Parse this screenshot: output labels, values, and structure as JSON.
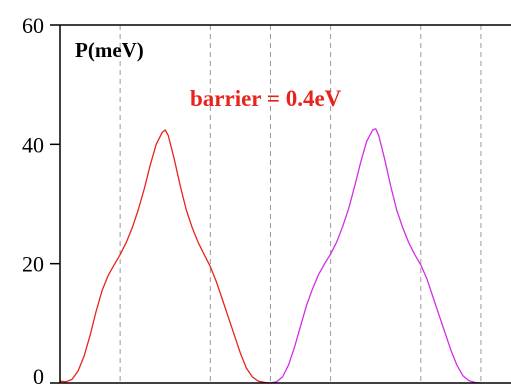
{
  "chart_data": {
    "type": "line",
    "title": "",
    "xlabel": "",
    "ylabel": "P(meV)",
    "annotation": "barrier = 0.4eV",
    "ylim": [
      0,
      60
    ],
    "yticks": [
      0,
      20,
      40,
      60
    ],
    "xlim": [
      0,
      7.5
    ],
    "x_gridlines": [
      1,
      2.5,
      3.5,
      4.5,
      6,
      7
    ],
    "grid": "x-only dashed",
    "series": [
      {
        "color": "#e8231c",
        "x": [
          0.0,
          0.1,
          0.2,
          0.3,
          0.4,
          0.5,
          0.6,
          0.7,
          0.8,
          0.9,
          1.0,
          1.1,
          1.2,
          1.3,
          1.4,
          1.5,
          1.6,
          1.7,
          1.75,
          1.8,
          1.9,
          2.0,
          2.1,
          2.2,
          2.3,
          2.4,
          2.5,
          2.6,
          2.7,
          2.8,
          2.9,
          3.0,
          3.1,
          3.2,
          3.3,
          3.4,
          3.5
        ],
        "values": [
          0.3,
          0.2,
          0.6,
          2.0,
          4.5,
          8.0,
          12.0,
          15.5,
          18.0,
          19.8,
          21.5,
          23.5,
          26.0,
          29.0,
          32.5,
          36.5,
          40.0,
          42.0,
          42.4,
          41.5,
          37.5,
          33.0,
          29.0,
          26.0,
          23.5,
          21.5,
          19.5,
          17.0,
          14.0,
          11.0,
          8.0,
          5.0,
          2.5,
          1.0,
          0.3,
          0.1,
          0.0
        ]
      },
      {
        "color": "#d12ee6",
        "x": [
          3.5,
          3.6,
          3.7,
          3.8,
          3.9,
          4.0,
          4.1,
          4.2,
          4.3,
          4.4,
          4.5,
          4.6,
          4.7,
          4.8,
          4.9,
          5.0,
          5.1,
          5.2,
          5.25,
          5.3,
          5.4,
          5.5,
          5.6,
          5.7,
          5.8,
          5.9,
          6.0,
          6.1,
          6.2,
          6.3,
          6.4,
          6.5,
          6.6,
          6.7,
          6.8,
          6.9,
          7.0
        ],
        "values": [
          0.0,
          0.2,
          1.0,
          3.0,
          6.0,
          9.5,
          13.0,
          15.8,
          18.2,
          20.0,
          21.6,
          23.6,
          26.2,
          29.2,
          33.0,
          37.0,
          40.5,
          42.4,
          42.6,
          41.5,
          37.5,
          33.0,
          29.0,
          26.0,
          23.5,
          21.5,
          19.8,
          17.5,
          14.5,
          11.5,
          8.5,
          5.5,
          3.0,
          1.2,
          0.4,
          0.1,
          0.0
        ]
      }
    ]
  }
}
